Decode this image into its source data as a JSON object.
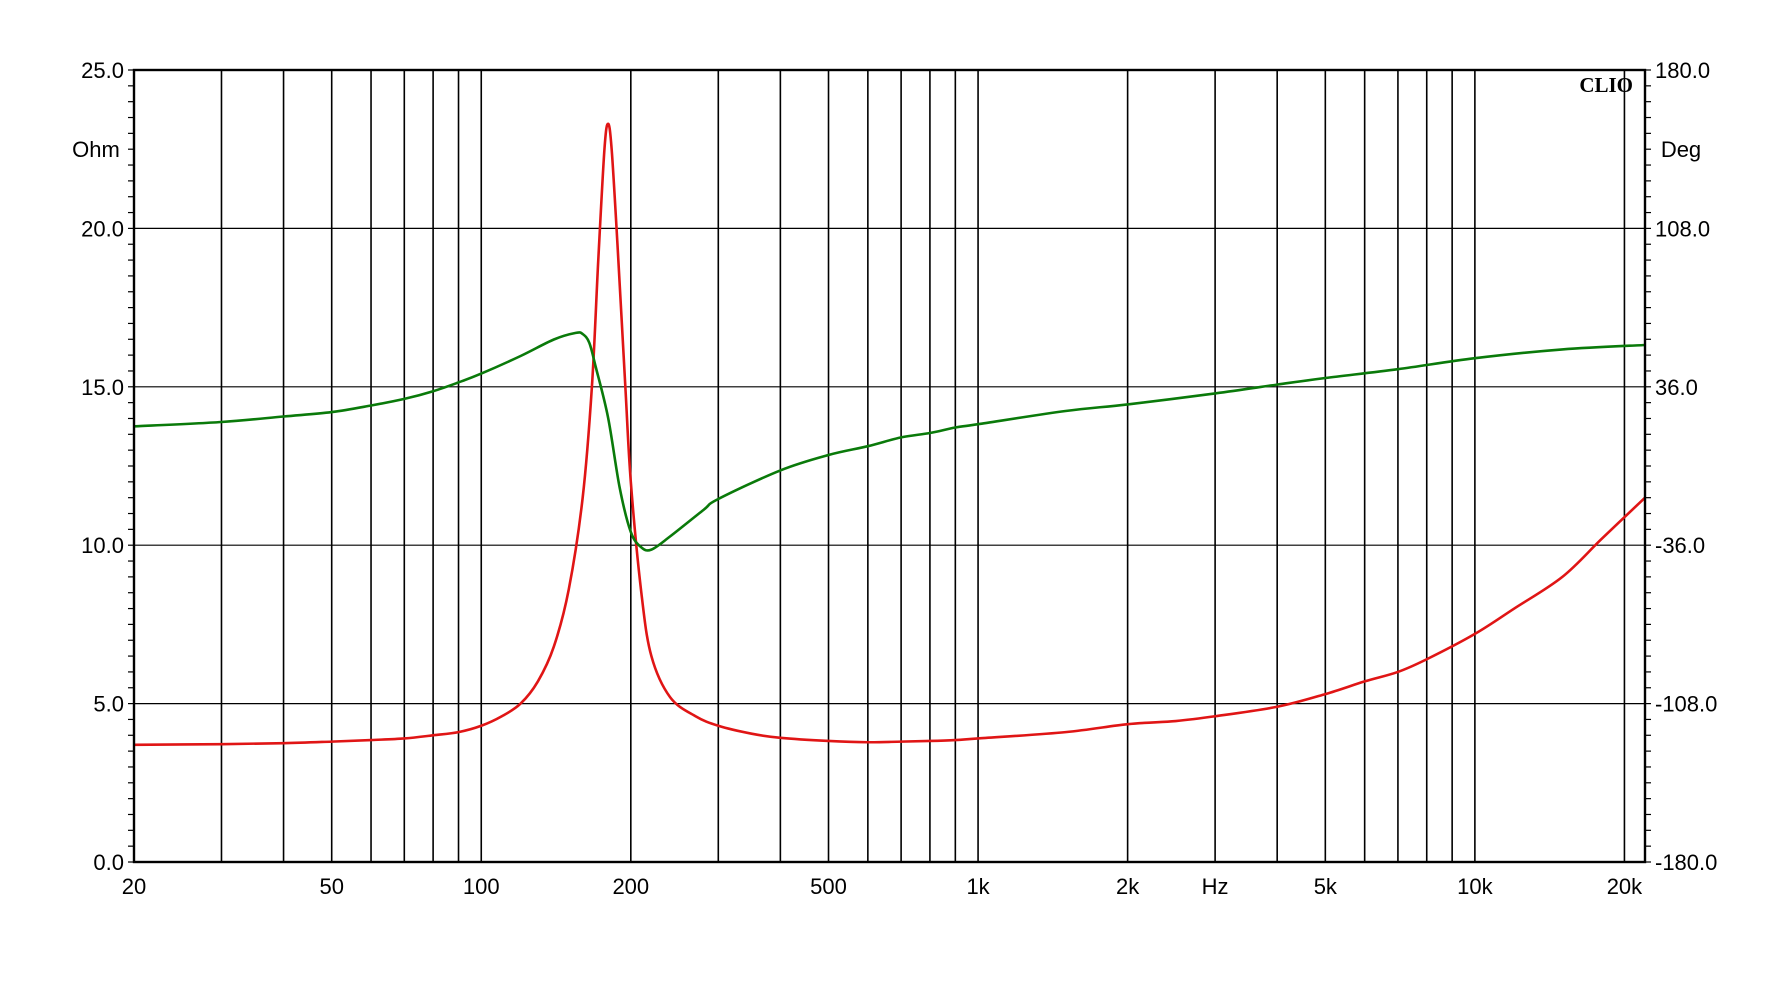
{
  "chart_data": {
    "type": "line",
    "brand": "CLIO",
    "x_unit": "Hz",
    "x_scale": "log",
    "xlim": [
      20,
      22000
    ],
    "grid": true,
    "x_gridlines": [
      20,
      30,
      40,
      50,
      60,
      70,
      80,
      90,
      100,
      200,
      300,
      400,
      500,
      600,
      700,
      800,
      900,
      1000,
      2000,
      3000,
      4000,
      5000,
      6000,
      7000,
      8000,
      9000,
      10000,
      20000
    ],
    "x_tick_labels": [
      {
        "value": 20,
        "label": "20"
      },
      {
        "value": 50,
        "label": "50"
      },
      {
        "value": 100,
        "label": "100"
      },
      {
        "value": 200,
        "label": "200"
      },
      {
        "value": 500,
        "label": "500"
      },
      {
        "value": 1000,
        "label": "1k"
      },
      {
        "value": 2000,
        "label": "2k"
      },
      {
        "value": 5000,
        "label": "5k"
      },
      {
        "value": 10000,
        "label": "10k"
      },
      {
        "value": 20000,
        "label": "20k"
      }
    ],
    "y_left": {
      "unit": "Ohm",
      "ylim": [
        0,
        25
      ],
      "ticks": [
        "0.0",
        "5.0",
        "10.0",
        "15.0",
        "20.0",
        "25.0"
      ]
    },
    "y_right": {
      "unit": "Deg",
      "ylim": [
        -180,
        180
      ],
      "ticks": [
        "-180.0",
        "-108.0",
        "-36.0",
        "36.0",
        "108.0",
        "180.0"
      ]
    },
    "series": [
      {
        "axis": "left",
        "color": "#e01515",
        "points": [
          [
            20,
            3.7
          ],
          [
            30,
            3.72
          ],
          [
            40,
            3.75
          ],
          [
            50,
            3.8
          ],
          [
            60,
            3.85
          ],
          [
            70,
            3.9
          ],
          [
            80,
            4.0
          ],
          [
            90,
            4.1
          ],
          [
            100,
            4.3
          ],
          [
            110,
            4.6
          ],
          [
            120,
            5.0
          ],
          [
            130,
            5.7
          ],
          [
            140,
            6.8
          ],
          [
            150,
            8.6
          ],
          [
            160,
            11.5
          ],
          [
            167,
            15.0
          ],
          [
            172,
            19.0
          ],
          [
            177,
            22.5
          ],
          [
            180,
            23.3
          ],
          [
            183,
            22.5
          ],
          [
            188,
            19.5
          ],
          [
            195,
            15.0
          ],
          [
            200,
            12.0
          ],
          [
            210,
            8.5
          ],
          [
            220,
            6.5
          ],
          [
            240,
            5.2
          ],
          [
            270,
            4.6
          ],
          [
            300,
            4.3
          ],
          [
            350,
            4.05
          ],
          [
            400,
            3.92
          ],
          [
            500,
            3.82
          ],
          [
            600,
            3.78
          ],
          [
            700,
            3.8
          ],
          [
            800,
            3.82
          ],
          [
            900,
            3.85
          ],
          [
            1000,
            3.9
          ],
          [
            1500,
            4.1
          ],
          [
            2000,
            4.35
          ],
          [
            2500,
            4.45
          ],
          [
            3000,
            4.6
          ],
          [
            4000,
            4.9
          ],
          [
            5000,
            5.3
          ],
          [
            6000,
            5.7
          ],
          [
            7000,
            6.0
          ],
          [
            8000,
            6.4
          ],
          [
            10000,
            7.2
          ],
          [
            12000,
            8.0
          ],
          [
            15000,
            9.0
          ],
          [
            18000,
            10.2
          ],
          [
            22000,
            11.5
          ]
        ]
      },
      {
        "axis": "right",
        "color": "#0a7a0a",
        "points": [
          [
            20,
            18.0
          ],
          [
            30,
            20.0
          ],
          [
            40,
            22.5
          ],
          [
            50,
            24.5
          ],
          [
            60,
            27.5
          ],
          [
            70,
            30.5
          ],
          [
            80,
            34.0
          ],
          [
            90,
            38.0
          ],
          [
            100,
            42.0
          ],
          [
            120,
            50.0
          ],
          [
            140,
            57.5
          ],
          [
            155,
            60.5
          ],
          [
            160,
            60.0
          ],
          [
            165,
            56.0
          ],
          [
            170,
            45.0
          ],
          [
            180,
            22.0
          ],
          [
            190,
            -10.0
          ],
          [
            200,
            -30.0
          ],
          [
            210,
            -37.0
          ],
          [
            220,
            -38.0
          ],
          [
            240,
            -32.0
          ],
          [
            280,
            -20.0
          ],
          [
            300,
            -15.0
          ],
          [
            400,
            -2.0
          ],
          [
            500,
            5.0
          ],
          [
            600,
            9.0
          ],
          [
            700,
            13.0
          ],
          [
            800,
            15.0
          ],
          [
            900,
            17.5
          ],
          [
            1000,
            19.0
          ],
          [
            1500,
            25.0
          ],
          [
            2000,
            28.0
          ],
          [
            3000,
            33.0
          ],
          [
            4000,
            37.0
          ],
          [
            5000,
            40.0
          ],
          [
            7000,
            44.0
          ],
          [
            10000,
            49.0
          ],
          [
            15000,
            53.0
          ],
          [
            22000,
            55.0
          ]
        ]
      }
    ]
  }
}
